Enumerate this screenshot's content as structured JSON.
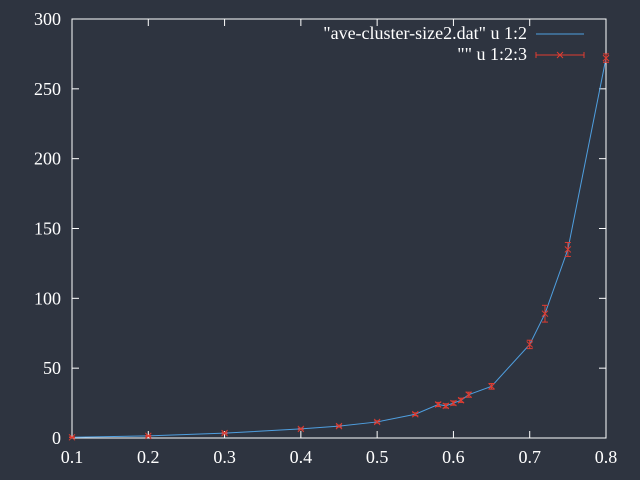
{
  "chart_data": {
    "type": "line",
    "title": "",
    "xlabel": "",
    "ylabel": "",
    "xlim": [
      0.1,
      0.8
    ],
    "ylim": [
      0,
      300
    ],
    "x_ticks": [
      "0.1",
      "0.2",
      "0.3",
      "0.4",
      "0.5",
      "0.6",
      "0.7",
      "0.8"
    ],
    "y_ticks": [
      "0",
      "50",
      "100",
      "150",
      "200",
      "250",
      "300"
    ],
    "x_tick_values": [
      0.1,
      0.2,
      0.3,
      0.4,
      0.5,
      0.6,
      0.7,
      0.8
    ],
    "y_tick_values": [
      0,
      50,
      100,
      150,
      200,
      250,
      300
    ],
    "grid": false,
    "legend_position": "top-right",
    "series": [
      {
        "name": "\"ave-cluster-size2.dat\" u 1:2",
        "style": "line",
        "color": "#4f9fe0"
      },
      {
        "name": "\"\" u 1:2:3",
        "style": "errorbars",
        "color": "#e03c31"
      }
    ],
    "x": [
      0.1,
      0.2,
      0.3,
      0.4,
      0.45,
      0.5,
      0.55,
      0.58,
      0.59,
      0.6,
      0.61,
      0.62,
      0.65,
      0.7,
      0.72,
      0.75,
      0.8
    ],
    "y": [
      0.5,
      1.5,
      3.5,
      6.5,
      8.5,
      11.5,
      17,
      24,
      23,
      25,
      27,
      31,
      37,
      67,
      89,
      135,
      272
    ],
    "errors": [
      0.2,
      0.3,
      0.5,
      0.6,
      0.7,
      0.8,
      1,
      1.5,
      1.5,
      1.5,
      1.5,
      1.8,
      2,
      3,
      6,
      5,
      3
    ]
  }
}
